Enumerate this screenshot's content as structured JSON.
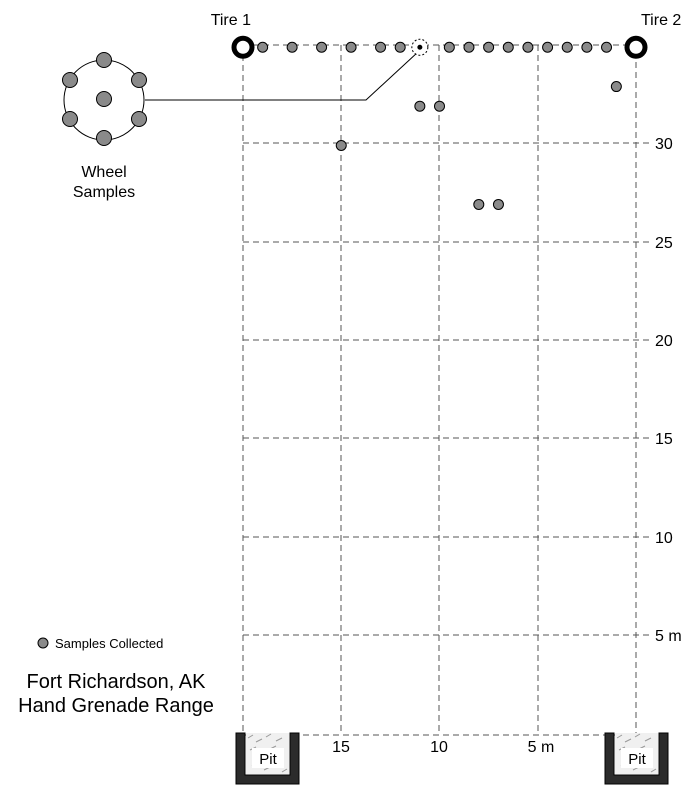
{
  "tires": [
    {
      "label": "Tire 1",
      "x_m": 20,
      "y_m": 35
    },
    {
      "label": "Tire 2",
      "x_m": 0,
      "y_m": 35
    }
  ],
  "x_axis_labels": [
    "15",
    "10",
    "5 m"
  ],
  "y_axis_labels": [
    "30",
    "25",
    "20",
    "15",
    "10",
    "5 m"
  ],
  "pits": [
    {
      "label": "Pit"
    },
    {
      "label": "Pit"
    }
  ],
  "wheel": {
    "label_line1": "Wheel",
    "label_line2": "Samples",
    "x_m": 11,
    "y_m": 35
  },
  "legend": {
    "label": "Samples Collected"
  },
  "site": {
    "line1": "Fort Richardson, AK",
    "line2": "Hand Grenade Range"
  },
  "samples": [
    {
      "x_m": 19,
      "y_m": 35
    },
    {
      "x_m": 17.5,
      "y_m": 35
    },
    {
      "x_m": 16,
      "y_m": 35
    },
    {
      "x_m": 14.5,
      "y_m": 35
    },
    {
      "x_m": 13,
      "y_m": 35
    },
    {
      "x_m": 12,
      "y_m": 35
    },
    {
      "x_m": 9.5,
      "y_m": 35
    },
    {
      "x_m": 8.5,
      "y_m": 35
    },
    {
      "x_m": 7.5,
      "y_m": 35
    },
    {
      "x_m": 6.5,
      "y_m": 35
    },
    {
      "x_m": 5.5,
      "y_m": 35
    },
    {
      "x_m": 4.5,
      "y_m": 35
    },
    {
      "x_m": 3.5,
      "y_m": 35
    },
    {
      "x_m": 2.5,
      "y_m": 35
    },
    {
      "x_m": 1.5,
      "y_m": 35
    },
    {
      "x_m": 11,
      "y_m": 32
    },
    {
      "x_m": 10,
      "y_m": 32
    },
    {
      "x_m": 1,
      "y_m": 33
    },
    {
      "x_m": 15,
      "y_m": 30
    },
    {
      "x_m": 8,
      "y_m": 27
    },
    {
      "x_m": 7,
      "y_m": 27
    }
  ]
}
